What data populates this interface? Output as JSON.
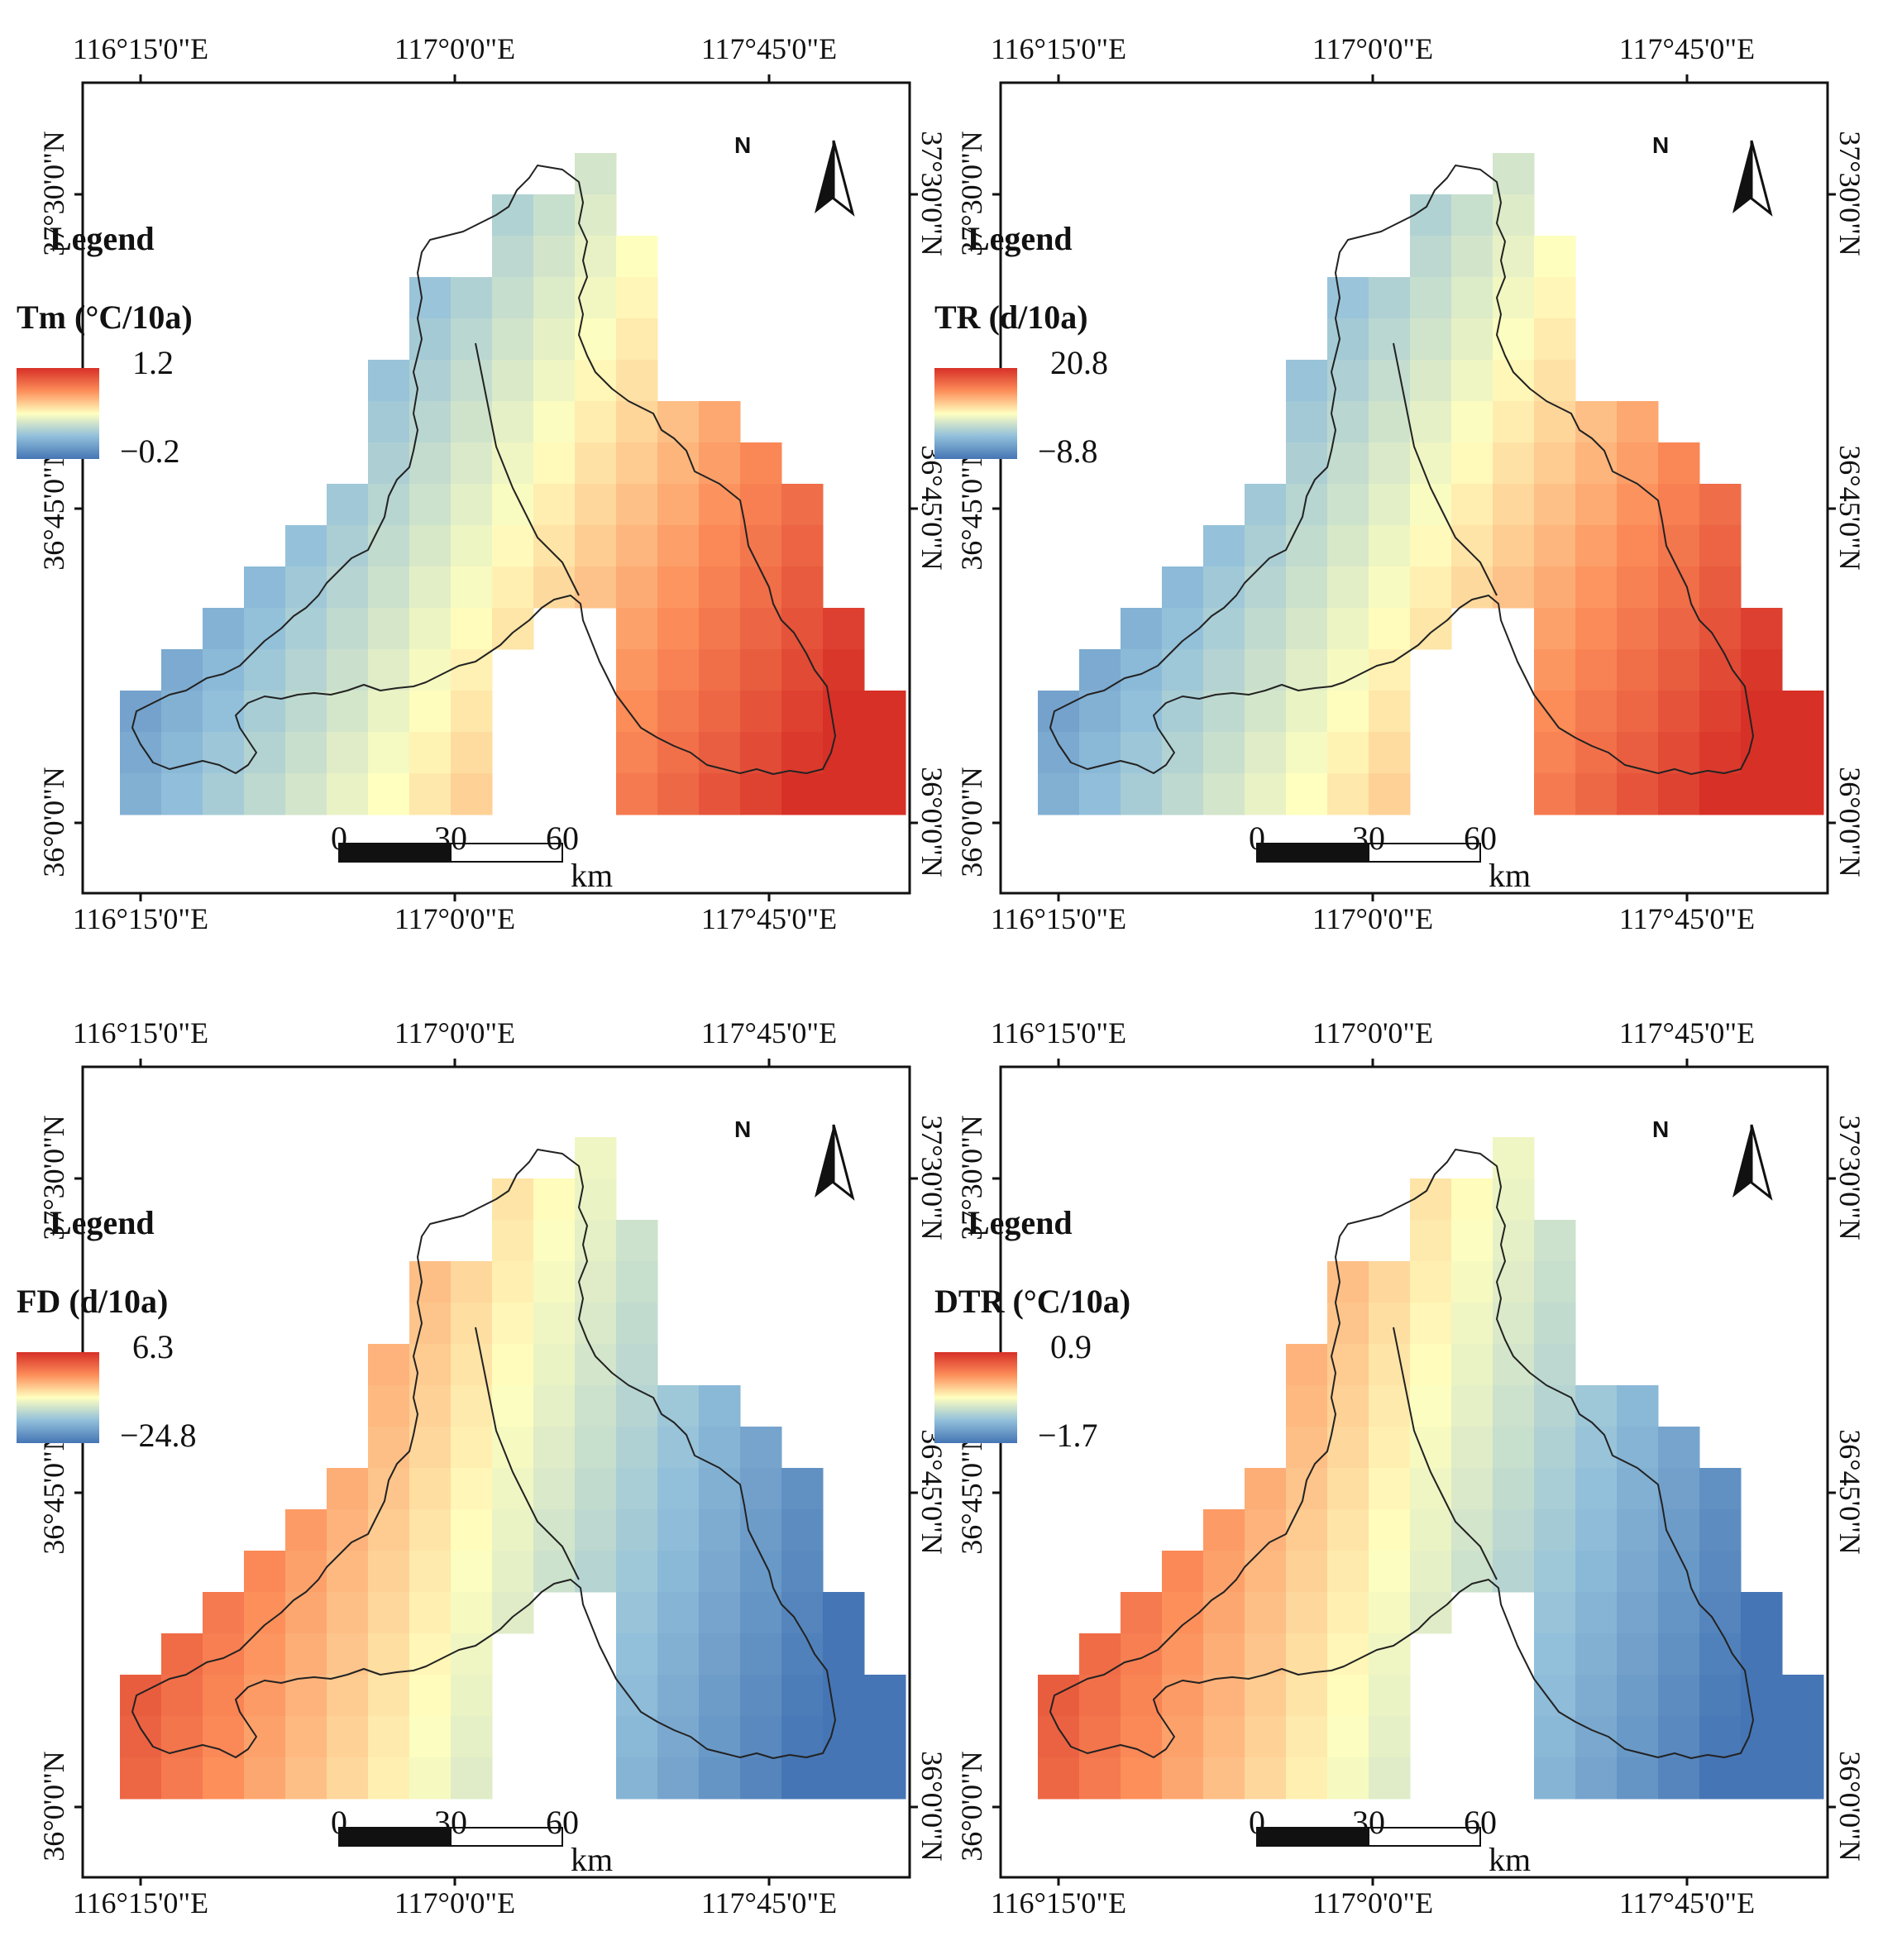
{
  "figure": {
    "panels": [
      {
        "id": "tm",
        "legend_title": "Legend",
        "variable": "Tm (°C/10a)",
        "legend_max": "1.2",
        "legend_min": "−0.2",
        "x_ticks": [
          "116°15'0\"E",
          "117°0'0\"E",
          "117°45'0\"E"
        ],
        "y_ticks": [
          "37°30'0\"N",
          "36°45'0\"N",
          "36°0'0\"N"
        ],
        "scale_labels": [
          "0",
          "30",
          "60"
        ],
        "scale_unit": "km",
        "north_label": "N",
        "trend": "southeast"
      },
      {
        "id": "tr",
        "legend_title": "Legend",
        "variable": "TR (d/10a)",
        "legend_max": "20.8",
        "legend_min": "−8.8",
        "x_ticks": [
          "116°15'0\"E",
          "117°0'0\"E",
          "117°45'0\"E"
        ],
        "y_ticks": [
          "37°30'0\"N",
          "36°45'0\"N",
          "36°0'0\"N"
        ],
        "scale_labels": [
          "0",
          "30",
          "60"
        ],
        "scale_unit": "km",
        "north_label": "N",
        "trend": "southeast"
      },
      {
        "id": "fd",
        "legend_title": "Legend",
        "variable": "FD (d/10a)",
        "legend_max": "6.3",
        "legend_min": "−24.8",
        "x_ticks": [
          "116°15'0\"E",
          "117°0'0\"E",
          "117°45'0\"E"
        ],
        "y_ticks": [
          "37°30'0\"N",
          "36°45'0\"N",
          "36°0'0\"N"
        ],
        "scale_labels": [
          "0",
          "30",
          "60"
        ],
        "scale_unit": "km",
        "north_label": "N",
        "trend": "west"
      },
      {
        "id": "dtr",
        "legend_title": "Legend",
        "variable": "DTR (°C/10a)",
        "legend_max": "0.9",
        "legend_min": "−1.7",
        "x_ticks": [
          "116°15'0\"E",
          "117°0'0\"E",
          "117°45'0\"E"
        ],
        "y_ticks": [
          "37°30'0\"N",
          "36°45'0\"N",
          "36°0'0\"N"
        ],
        "scale_labels": [
          "0",
          "30",
          "60"
        ],
        "scale_unit": "km",
        "north_label": "N",
        "trend": "west"
      }
    ],
    "colors": {
      "ramp": [
        "#d73027",
        "#fc8d59",
        "#ffffbf",
        "#91bfdb",
        "#4575b4"
      ],
      "frame": "#111111",
      "boundary": "#222222"
    }
  }
}
